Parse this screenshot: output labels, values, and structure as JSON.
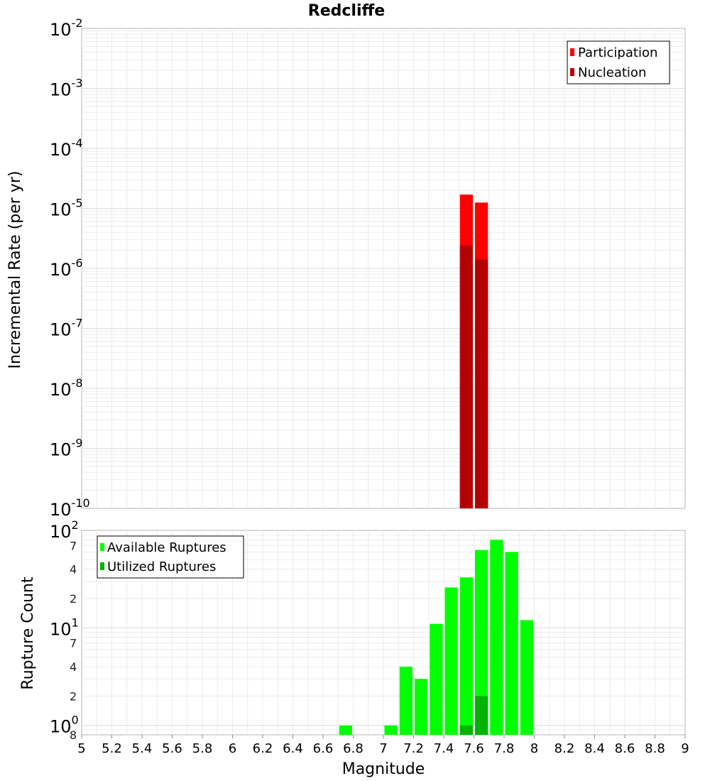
{
  "chart_data": [
    {
      "type": "bar",
      "title": "Redcliffe",
      "ylabel": "Incremental Rate (per yr)",
      "xlabel": "",
      "y_scale": "log",
      "ylim": [
        1e-10,
        0.01
      ],
      "xlim": [
        5,
        9
      ],
      "y_tick_labels": [
        {
          "value": 0.01,
          "base": "10",
          "exp": "-2"
        },
        {
          "value": 0.001,
          "base": "10",
          "exp": "-3"
        },
        {
          "value": 0.0001,
          "base": "10",
          "exp": "-4"
        },
        {
          "value": 1e-05,
          "base": "10",
          "exp": "-5"
        },
        {
          "value": 1e-06,
          "base": "10",
          "exp": "-6"
        },
        {
          "value": 1e-07,
          "base": "10",
          "exp": "-7"
        },
        {
          "value": 1e-08,
          "base": "10",
          "exp": "-8"
        },
        {
          "value": 1e-09,
          "base": "10",
          "exp": "-9"
        },
        {
          "value": 1e-10,
          "base": "10",
          "exp": "-10"
        }
      ],
      "bin_width": 0.1,
      "series": [
        {
          "name": "Participation",
          "color": "#ff0000",
          "x": [
            7.55,
            7.65
          ],
          "values": [
            1.7e-05,
            1.25e-05
          ]
        },
        {
          "name": "Nucleation",
          "color": "#b30000",
          "x": [
            7.55,
            7.65
          ],
          "values": [
            2.4e-06,
            1.4e-06
          ]
        }
      ],
      "legend": "top-right",
      "grid": true
    },
    {
      "type": "bar",
      "title": "",
      "ylabel": "Rupture Count",
      "xlabel": "Magnitude",
      "y_scale": "log",
      "ylim": [
        0.8,
        100
      ],
      "xlim": [
        5,
        9
      ],
      "x_tick_labels": [
        "5",
        "5.2",
        "5.4",
        "5.6",
        "5.8",
        "6",
        "6.2",
        "6.4",
        "6.6",
        "6.8",
        "7",
        "7.2",
        "7.4",
        "7.6",
        "7.8",
        "8",
        "8.2",
        "8.4",
        "8.6",
        "8.8",
        "9"
      ],
      "y_tick_labels": [
        {
          "value": 100,
          "base": "10",
          "exp": "2"
        },
        {
          "value": 10,
          "base": "10",
          "exp": "1"
        },
        {
          "value": 1,
          "base": "10",
          "exp": "0"
        }
      ],
      "y_minor_labels": [
        {
          "value": 70,
          "label": "7"
        },
        {
          "value": 40,
          "label": "4"
        },
        {
          "value": 20,
          "label": "2"
        },
        {
          "value": 7,
          "label": "7"
        },
        {
          "value": 4,
          "label": "4"
        },
        {
          "value": 2,
          "label": "2"
        },
        {
          "value": 0.8,
          "label": "8"
        }
      ],
      "bin_width": 0.1,
      "series": [
        {
          "name": "Available Ruptures",
          "color": "#00ff00",
          "x": [
            6.75,
            7.05,
            7.15,
            7.25,
            7.35,
            7.45,
            7.55,
            7.65,
            7.75,
            7.85,
            7.95
          ],
          "values": [
            1,
            1,
            4,
            3,
            11,
            26,
            33,
            63,
            80,
            60,
            12
          ]
        },
        {
          "name": "Utilized Ruptures",
          "color": "#00b300",
          "x": [
            7.55,
            7.65
          ],
          "values": [
            1,
            2
          ]
        }
      ],
      "legend": "top-left",
      "grid": true
    }
  ]
}
